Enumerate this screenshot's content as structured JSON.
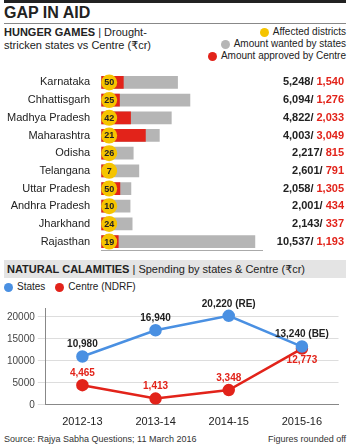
{
  "title": "GAP IN AID",
  "source": "Source: Rajya Sabha Questions; 11 March 2016",
  "footnote": "Figures rounded off",
  "chart_data": [
    {
      "type": "bar",
      "orientation": "horizontal",
      "title": "HUNGER GAMES",
      "subtitle": "| Drought-stricken states vs Centre (₹cr)",
      "categories": [
        "Karnataka",
        "Chhattisgarh",
        "Madhya Pradesh",
        "Maharashtra",
        "Odisha",
        "Telangana",
        "Uttar Pradesh",
        "Andhra Pradesh",
        "Jharkhand",
        "Rajasthan"
      ],
      "affected_districts": {
        "name": "Affected districts",
        "color": "#f5c400",
        "values": [
          50,
          25,
          42,
          21,
          26,
          7,
          50,
          10,
          24,
          19
        ]
      },
      "series": [
        {
          "name": "Amount wanted by states",
          "color": "#b5b5b5",
          "values": [
            5248,
            6094,
            4822,
            4003,
            2217,
            2601,
            2058,
            2001,
            2143,
            10537
          ],
          "value_labels": [
            "5,248/",
            "6,094/",
            "4,822/",
            "4,003/",
            "2,217/",
            "2,601/",
            "2,058/",
            "2,001/",
            "2,143/",
            "10,537/"
          ]
        },
        {
          "name": "Amount approved by Centre",
          "color": "#e2231a",
          "values": [
            1540,
            1276,
            2033,
            3049,
            815,
            791,
            1305,
            434,
            337,
            1193
          ],
          "value_labels": [
            "1,540",
            "1,276",
            "2,033",
            "3,049",
            "815",
            "791",
            "1,305",
            "434",
            "337",
            "1,193"
          ]
        }
      ],
      "xlim": [
        0,
        11000
      ],
      "tick_labels": "y",
      "grid": false,
      "data_labels": true,
      "legend": "top-right"
    },
    {
      "type": "line",
      "title": "NATURAL CALAMITIES",
      "subtitle": "| Spending by states & Centre (₹cr)",
      "categories": [
        "2012-13",
        "2013-14",
        "2014-15",
        "2015-16"
      ],
      "series": [
        {
          "name": "States",
          "color": "#4a90e2",
          "marker": "circle",
          "line_style": "solid",
          "values": [
            10980,
            16940,
            20220,
            13240
          ],
          "value_labels": [
            "10,980",
            "16,940",
            "20,220 (RE)",
            "13,240 (BE)"
          ]
        },
        {
          "name": "Centre (NDRF)",
          "color": "#e2231a",
          "marker": "circle",
          "line_style": "solid",
          "values": [
            4465,
            1413,
            3348,
            12773
          ],
          "value_labels": [
            "4,465",
            "1,413",
            "3,348",
            "12,773"
          ]
        }
      ],
      "ylim": [
        0,
        22000
      ],
      "yticks": [
        0,
        5000,
        10000,
        15000,
        20000
      ],
      "grid": true,
      "data_labels": true,
      "legend": "top-right"
    }
  ]
}
